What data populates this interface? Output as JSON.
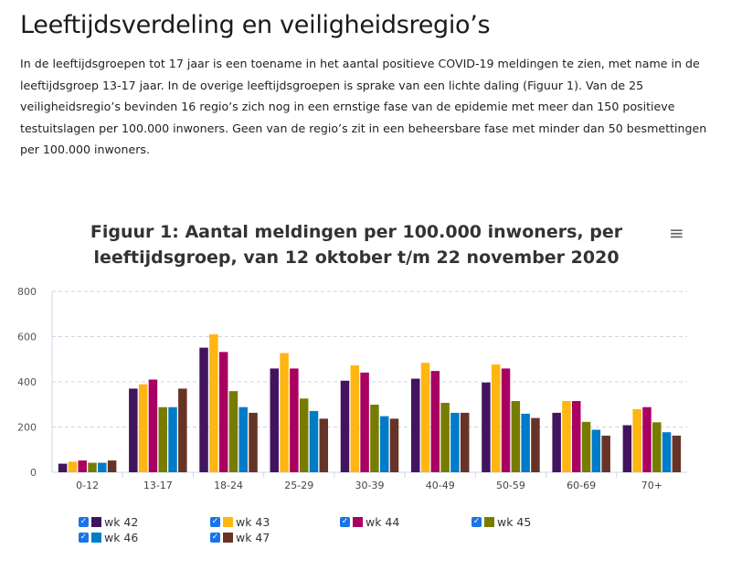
{
  "heading": "Leeftijdsverdeling en veiligheidsregio’s",
  "intro": "In de leeftijdsgroepen tot 17 jaar is een toename in het aantal positieve COVID-19 meldingen te zien, met name in de leeftijdsgroep 13-17 jaar. In de overige leeftijdsgroepen is sprake van een lichte daling (Figuur 1). Van de 25 veiligheidsregio’s bevinden 16 regio’s zich  nog in een ernstige fase van de epidemie met meer dan 150 positieve testuitslagen per 100.000 inwoners. Geen van de regio’s zit in een beheersbare fase met minder dan 50 besmettingen per 100.000 inwoners.",
  "menu_icon": "hamburger-menu-icon",
  "chart_data": {
    "type": "bar",
    "title": "Figuur 1: Aantal meldingen per 100.000 inwoners, per leeftijdsgroep, van 12 oktober t/m 22 november 2020",
    "categories": [
      "0-12",
      "13-17",
      "18-24",
      "25-29",
      "30-39",
      "40-49",
      "50-59",
      "60-69",
      "70+"
    ],
    "ylim": [
      0,
      800
    ],
    "yticks": [
      "0",
      "200",
      "400",
      "600",
      "800"
    ],
    "grid": true,
    "legend_position": "bottom",
    "series": [
      {
        "name": "wk 42",
        "color": "#42145f",
        "values": [
          38,
          370,
          551,
          459,
          405,
          414,
          397,
          263,
          208
        ]
      },
      {
        "name": "wk 43",
        "color": "#ffb612",
        "values": [
          47,
          389,
          610,
          527,
          473,
          484,
          477,
          315,
          279
        ]
      },
      {
        "name": "wk 44",
        "color": "#a90061",
        "values": [
          52,
          410,
          532,
          459,
          441,
          448,
          459,
          315,
          288
        ]
      },
      {
        "name": "wk 45",
        "color": "#777c00",
        "values": [
          42,
          288,
          359,
          326,
          299,
          307,
          315,
          223,
          221
        ]
      },
      {
        "name": "wk 46",
        "color": "#007bc7",
        "values": [
          42,
          288,
          288,
          271,
          248,
          263,
          259,
          188,
          177
        ]
      },
      {
        "name": "wk 47",
        "color": "#673327",
        "values": [
          52,
          370,
          263,
          237,
          237,
          263,
          240,
          162,
          162
        ]
      }
    ]
  }
}
